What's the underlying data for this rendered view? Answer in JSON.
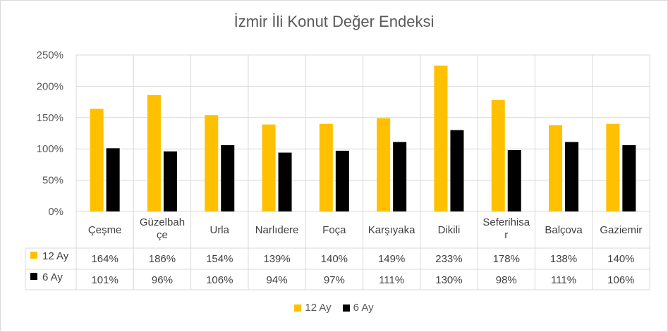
{
  "chart_data": {
    "type": "bar",
    "title": "İzmir İli Konut Değer Endeksi",
    "categories": [
      [
        "Çeşme"
      ],
      [
        "Güzelbah",
        "çe"
      ],
      [
        "Urla"
      ],
      [
        "Narlıdere"
      ],
      [
        "Foça"
      ],
      [
        "Karşıyaka"
      ],
      [
        "Dikili"
      ],
      [
        "Seferihisa",
        "r"
      ],
      [
        "Balçova"
      ],
      [
        "Gaziemir"
      ]
    ],
    "series": [
      {
        "name": "12 Ay",
        "color": "#FFC000",
        "values": [
          164,
          186,
          154,
          139,
          140,
          149,
          233,
          178,
          138,
          140
        ],
        "labels": [
          "164%",
          "186%",
          "154%",
          "139%",
          "140%",
          "149%",
          "233%",
          "178%",
          "138%",
          "140%"
        ]
      },
      {
        "name": "6 Ay",
        "color": "#000000",
        "values": [
          101,
          96,
          106,
          94,
          97,
          111,
          130,
          98,
          111,
          106
        ],
        "labels": [
          "101%",
          "96%",
          "106%",
          "94%",
          "97%",
          "111%",
          "130%",
          "98%",
          "111%",
          "106%"
        ]
      }
    ],
    "ylim": [
      0,
      250
    ],
    "yticks": [
      "0%",
      "50%",
      "100%",
      "150%",
      "200%",
      "250%"
    ],
    "legend_position": "bottom",
    "data_table": true
  }
}
